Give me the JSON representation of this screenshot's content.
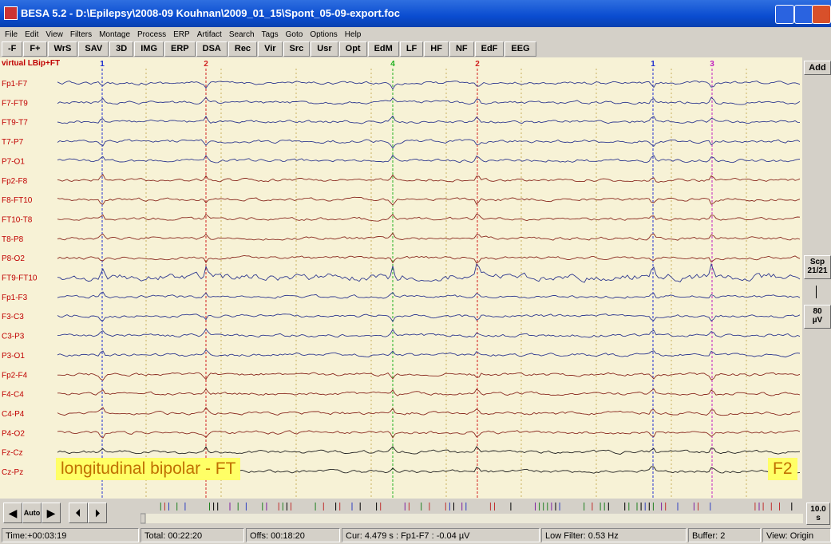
{
  "title_bar": {
    "title": "BESA 5.2 - D:\\Epilepsy\\2008-09 Kouhnan\\2009_01_15\\Spont_05-09-export.foc"
  },
  "menu": {
    "items": [
      "File",
      "Edit",
      "View",
      "Filters",
      "Montage",
      "Process",
      "ERP",
      "Artifact",
      "Search",
      "Tags",
      "Goto",
      "Options",
      "Help"
    ]
  },
  "toolbar": {
    "buttons": [
      "-F",
      "F+",
      "WrS",
      "SAV",
      "3D",
      "IMG",
      "ERP",
      "DSA",
      "Rec",
      "Vir",
      "Src",
      "Usr",
      "Opt",
      "EdM",
      "LF",
      "HF",
      "NF",
      "EdF",
      "EEG"
    ]
  },
  "eeg": {
    "montage": "virtual LBip+FT",
    "channels": [
      "Fp1-F7",
      "F7-FT9",
      "FT9-T7",
      "T7-P7",
      "P7-O1",
      "Fp2-F8",
      "F8-FT10",
      "FT10-T8",
      "T8-P8",
      "P8-O2",
      "FT9-FT10",
      "Fp1-F3",
      "F3-C3",
      "C3-P3",
      "P3-O1",
      "Fp2-F4",
      "F4-C4",
      "C4-P4",
      "P4-O2",
      "Fz-Cz",
      "Cz-Pz"
    ],
    "markers": [
      "1",
      "2",
      "4",
      "2",
      "1",
      "3"
    ],
    "overlay_left": "longitudinal bipolar - FT",
    "overlay_right": "F2"
  },
  "side_panel": {
    "add": "Add",
    "scope": "Scp",
    "scope_count": "21/21",
    "scale_value": "80",
    "scale_unit": "µV"
  },
  "navigation": {
    "auto": "Auto",
    "page_value": "10.0",
    "page_unit": "s"
  },
  "status_bar": {
    "items": [
      "Time:+00:03:19",
      "Total: 00:22:20",
      "Offs: 00:18:20",
      "Cur: 4.479 s : Fp1-F7 : -0.04 µV",
      "Low Filter: 0.53 Hz",
      "Buffer: 2",
      "View: Origin"
    ]
  }
}
